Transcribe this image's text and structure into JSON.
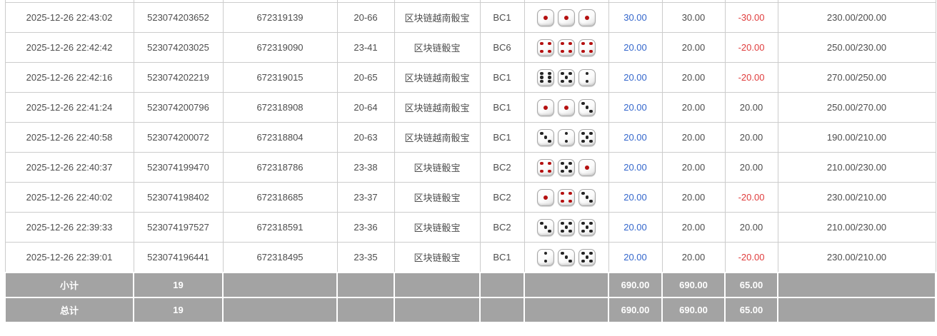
{
  "colors": {
    "link_blue": "#3366cc",
    "negative_red": "#e03c3c",
    "summary_gray": "#a3a3a3",
    "grid_border": "#cccccc",
    "dice_pip_red": "#b40f0f",
    "dice_pip_black": "#242424"
  },
  "icons": {
    "dice_red_faces": [
      1,
      4
    ]
  },
  "table": {
    "rows": [
      {
        "time": "2025-12-26 22:43:02",
        "order_no": "523074203652",
        "round_no": "672319139",
        "period": "20-66",
        "game": "区块链越南骰宝",
        "bet_type": "BC1",
        "dice": [
          1,
          1,
          1
        ],
        "bet_amount": "30.00",
        "valid_amount": "30.00",
        "win_loss": "-30.00",
        "balance": "230.00/200.00"
      },
      {
        "time": "2025-12-26 22:42:42",
        "order_no": "523074203025",
        "round_no": "672319090",
        "period": "23-41",
        "game": "区块链骰宝",
        "bet_type": "BC6",
        "dice": [
          4,
          4,
          4
        ],
        "bet_amount": "20.00",
        "valid_amount": "20.00",
        "win_loss": "-20.00",
        "balance": "250.00/230.00"
      },
      {
        "time": "2025-12-26 22:42:16",
        "order_no": "523074202219",
        "round_no": "672319015",
        "period": "20-65",
        "game": "区块链越南骰宝",
        "bet_type": "BC1",
        "dice": [
          6,
          5,
          2
        ],
        "bet_amount": "20.00",
        "valid_amount": "20.00",
        "win_loss": "-20.00",
        "balance": "270.00/250.00"
      },
      {
        "time": "2025-12-26 22:41:24",
        "order_no": "523074200796",
        "round_no": "672318908",
        "period": "20-64",
        "game": "区块链越南骰宝",
        "bet_type": "BC1",
        "dice": [
          1,
          1,
          3
        ],
        "bet_amount": "20.00",
        "valid_amount": "20.00",
        "win_loss": "20.00",
        "balance": "250.00/270.00"
      },
      {
        "time": "2025-12-26 22:40:58",
        "order_no": "523074200072",
        "round_no": "672318804",
        "period": "20-63",
        "game": "区块链越南骰宝",
        "bet_type": "BC1",
        "dice": [
          3,
          2,
          5
        ],
        "bet_amount": "20.00",
        "valid_amount": "20.00",
        "win_loss": "20.00",
        "balance": "190.00/210.00"
      },
      {
        "time": "2025-12-26 22:40:37",
        "order_no": "523074199470",
        "round_no": "672318786",
        "period": "23-38",
        "game": "区块链骰宝",
        "bet_type": "BC2",
        "dice": [
          4,
          5,
          1
        ],
        "bet_amount": "20.00",
        "valid_amount": "20.00",
        "win_loss": "20.00",
        "balance": "210.00/230.00"
      },
      {
        "time": "2025-12-26 22:40:02",
        "order_no": "523074198402",
        "round_no": "672318685",
        "period": "23-37",
        "game": "区块链骰宝",
        "bet_type": "BC2",
        "dice": [
          1,
          4,
          3
        ],
        "bet_amount": "20.00",
        "valid_amount": "20.00",
        "win_loss": "-20.00",
        "balance": "230.00/210.00"
      },
      {
        "time": "2025-12-26 22:39:33",
        "order_no": "523074197527",
        "round_no": "672318591",
        "period": "23-36",
        "game": "区块链骰宝",
        "bet_type": "BC2",
        "dice": [
          3,
          5,
          5
        ],
        "bet_amount": "20.00",
        "valid_amount": "20.00",
        "win_loss": "20.00",
        "balance": "210.00/230.00"
      },
      {
        "time": "2025-12-26 22:39:01",
        "order_no": "523074196441",
        "round_no": "672318495",
        "period": "23-35",
        "game": "区块链骰宝",
        "bet_type": "BC1",
        "dice": [
          2,
          3,
          5
        ],
        "bet_amount": "20.00",
        "valid_amount": "20.00",
        "win_loss": "-20.00",
        "balance": "230.00/210.00"
      }
    ],
    "footer": {
      "subtotal": {
        "label": "小计",
        "count": "19",
        "bet_total": "690.00",
        "valid_total": "690.00",
        "win_loss_total": "65.00"
      },
      "total": {
        "label": "总计",
        "count": "19",
        "bet_total": "690.00",
        "valid_total": "690.00",
        "win_loss_total": "65.00"
      }
    }
  }
}
